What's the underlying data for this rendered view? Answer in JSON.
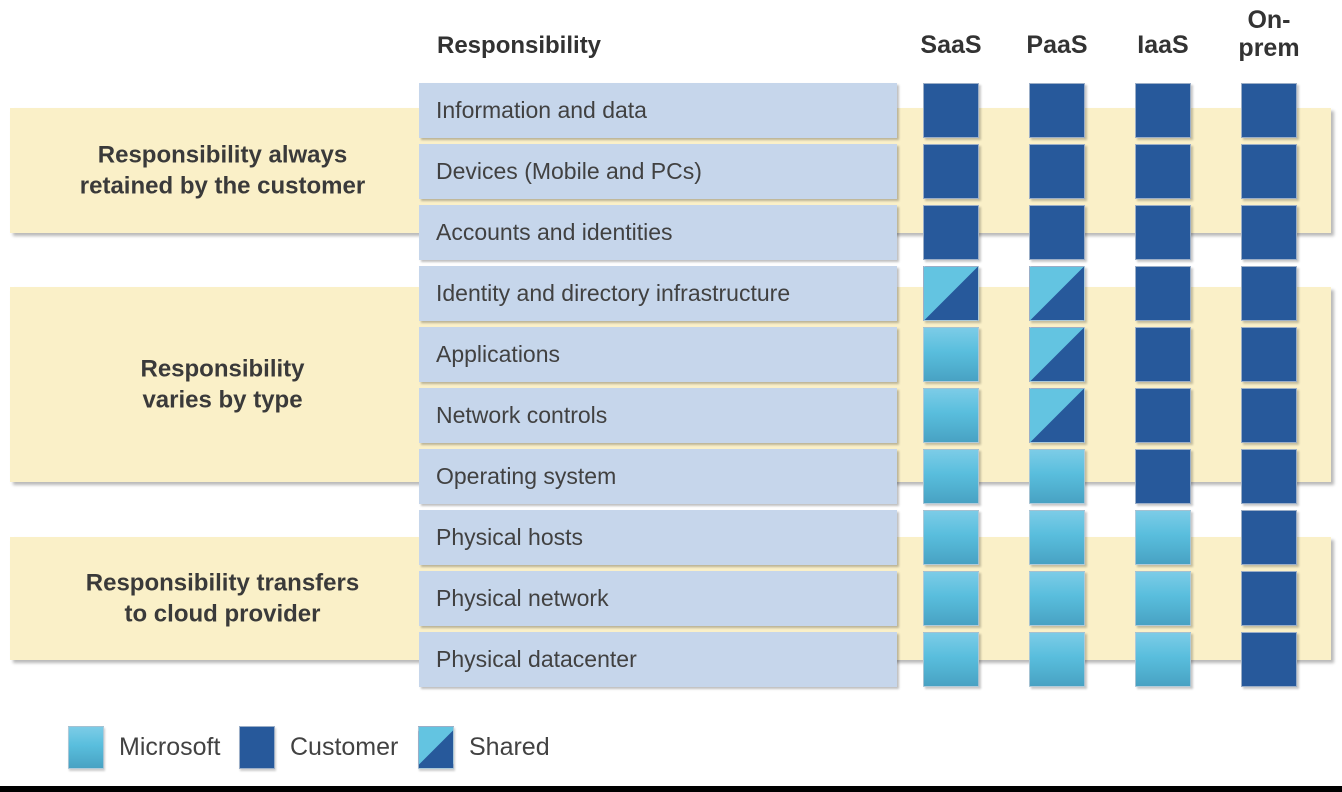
{
  "header": {
    "responsibility_label": "Responsibility"
  },
  "columns": [
    {
      "id": "saas",
      "label": "SaaS",
      "label_lines": [
        "SaaS"
      ]
    },
    {
      "id": "paas",
      "label": "PaaS",
      "label_lines": [
        "PaaS"
      ]
    },
    {
      "id": "iaas",
      "label": "IaaS",
      "label_lines": [
        "IaaS"
      ]
    },
    {
      "id": "onprem",
      "label": "On-prem",
      "label_lines": [
        "On-",
        "prem"
      ]
    }
  ],
  "groups": [
    {
      "id": "retained",
      "label": "Responsibility always retained by the customer",
      "label_lines": [
        "Responsibility always",
        "retained by the customer"
      ],
      "row_start": 0,
      "row_end": 2
    },
    {
      "id": "varies",
      "label": "Responsibility varies by type",
      "label_lines": [
        "Responsibility",
        "varies by type"
      ],
      "row_start": 3,
      "row_end": 6
    },
    {
      "id": "transfers",
      "label": "Responsibility transfers to cloud provider",
      "label_lines": [
        "Responsibility transfers",
        "to cloud provider"
      ],
      "row_start": 7,
      "row_end": 9
    }
  ],
  "rows": [
    {
      "label": "Information and data",
      "cells": [
        "customer",
        "customer",
        "customer",
        "customer"
      ]
    },
    {
      "label": "Devices (Mobile and PCs)",
      "cells": [
        "customer",
        "customer",
        "customer",
        "customer"
      ]
    },
    {
      "label": "Accounts and identities",
      "cells": [
        "customer",
        "customer",
        "customer",
        "customer"
      ]
    },
    {
      "label": "Identity and directory infrastructure",
      "cells": [
        "shared",
        "shared",
        "customer",
        "customer"
      ]
    },
    {
      "label": "Applications",
      "cells": [
        "microsoft",
        "shared",
        "customer",
        "customer"
      ]
    },
    {
      "label": "Network controls",
      "cells": [
        "microsoft",
        "shared",
        "customer",
        "customer"
      ]
    },
    {
      "label": "Operating system",
      "cells": [
        "microsoft",
        "microsoft",
        "customer",
        "customer"
      ]
    },
    {
      "label": "Physical hosts",
      "cells": [
        "microsoft",
        "microsoft",
        "microsoft",
        "customer"
      ]
    },
    {
      "label": "Physical network",
      "cells": [
        "microsoft",
        "microsoft",
        "microsoft",
        "customer"
      ]
    },
    {
      "label": "Physical datacenter",
      "cells": [
        "microsoft",
        "microsoft",
        "microsoft",
        "customer"
      ]
    }
  ],
  "legend": [
    {
      "type": "microsoft",
      "label": "Microsoft"
    },
    {
      "type": "customer",
      "label": "Customer"
    },
    {
      "type": "shared",
      "label": "Shared"
    }
  ],
  "colors": {
    "customer_blue": "#27599B",
    "microsoft_blue_top": "#7CCCE7",
    "microsoft_blue_mid": "#63C4E1",
    "microsoft_blue_bottom": "#48A2C3",
    "band_yellow": "#FAF0C8",
    "row_box_blue": "#C6D6EB"
  }
}
